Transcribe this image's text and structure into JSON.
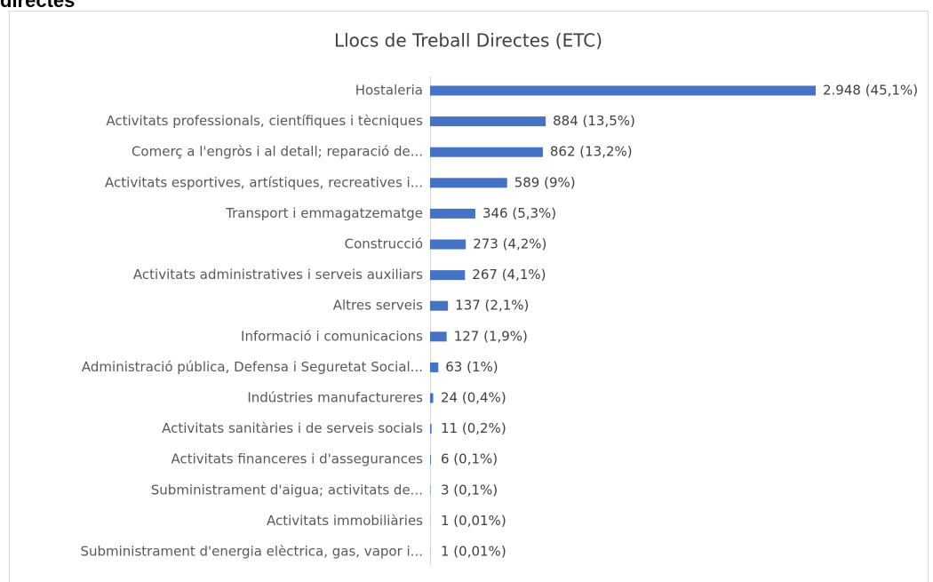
{
  "header": {
    "title": "directes"
  },
  "chart_data": {
    "type": "bar",
    "orientation": "horizontal",
    "title": "Llocs de Treball Directes (ETC)",
    "color": "#4472c4",
    "categories": [
      "Hostaleria",
      "Activitats professionals, científiques i tècniques",
      "Comerç a l'engròs i al detall; reparació de...",
      "Activitats esportives,  artístiques, recreatives i...",
      "Transport i emmagatzematge",
      "Construcció",
      "Activitats administratives i serveis auxiliars",
      "Altres serveis",
      "Informació i comunicacions",
      "Administració pública, Defensa i Seguretat Social...",
      "Indústries manufactureres",
      "Activitats sanitàries i de serveis socials",
      "Activitats financeres i d'assegurances",
      "Subministrament d'aigua; activitats de...",
      "Activitats immobiliàries",
      "Subministrament d'energia elèctrica, gas, vapor i..."
    ],
    "values": [
      2948,
      884,
      862,
      589,
      346,
      273,
      267,
      137,
      127,
      63,
      24,
      11,
      6,
      3,
      1,
      1
    ],
    "value_labels": [
      "2.948 (45,1%)",
      "884 (13,5%)",
      "862 (13,2%)",
      "589 (9%)",
      "346 (5,3%)",
      "273 (4,2%)",
      "267 (4,1%)",
      "137 (2,1%)",
      "127 (1,9%)",
      "63 (1%)",
      "24 (0,4%)",
      "11 (0,2%)",
      "6 (0,1%)",
      "3 (0,1%)",
      "1 (0,01%)",
      "1 (0,01%)"
    ]
  }
}
